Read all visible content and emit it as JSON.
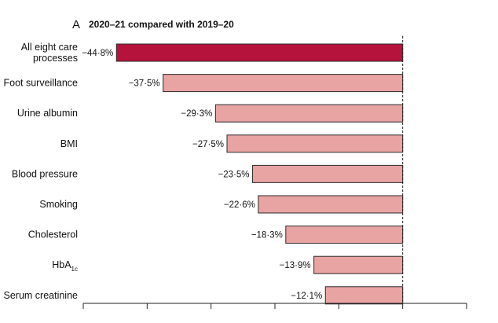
{
  "chart_data": {
    "type": "bar",
    "orientation": "horizontal",
    "panel_letter": "A",
    "title": "2020–21 compared with 2019–20",
    "categories": [
      [
        "All eight care",
        "processes"
      ],
      [
        "Foot surveillance"
      ],
      [
        "Urine albumin"
      ],
      [
        "BMI"
      ],
      [
        "Blood pressure"
      ],
      [
        "Smoking"
      ],
      [
        "Cholesterol"
      ],
      [
        "HbA1c"
      ],
      [
        "Serum creatinine"
      ]
    ],
    "values": [
      -44.8,
      -37.5,
      -29.3,
      -27.5,
      -23.5,
      -22.6,
      -18.3,
      -13.9,
      -12.1
    ],
    "value_labels": [
      "−44·8%",
      "−37·5%",
      "−29·3%",
      "−27·5%",
      "−23·5%",
      "−22·6%",
      "−18·3%",
      "−13·9%",
      "−12·1%"
    ],
    "xlim": [
      -50,
      10
    ],
    "xticks": [
      -50,
      -40,
      -30,
      -20,
      -10,
      0,
      10
    ],
    "reference_line": 0,
    "grid": false,
    "colors": {
      "highlight_fill": "#b5123c",
      "bar_fill": "#e8a3a3",
      "bar_stroke": "#2b2b2b"
    }
  }
}
